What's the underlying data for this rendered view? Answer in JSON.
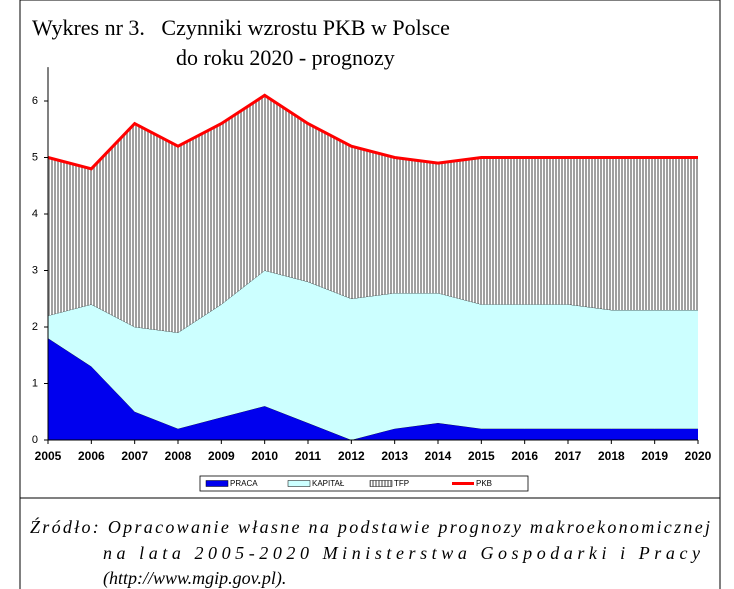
{
  "chart_data": {
    "type": "stacked-area-line",
    "title": "Wykres nr 3.   Czynniki wzrostu PKB w Polsce",
    "subtitle": "do roku 2020 - prognozy",
    "categories": [
      "2005",
      "2006",
      "2007",
      "2008",
      "2009",
      "2010",
      "2011",
      "2012",
      "2013",
      "2014",
      "2015",
      "2016",
      "2017",
      "2018",
      "2019",
      "2020"
    ],
    "series": [
      {
        "name": "PRACA",
        "kind": "area",
        "color": "#0000ee",
        "values": [
          1.8,
          1.3,
          0.5,
          0.2,
          0.4,
          0.6,
          0.3,
          0.0,
          0.2,
          0.3,
          0.2,
          0.2,
          0.2,
          0.2,
          0.2,
          0.2
        ]
      },
      {
        "name": "KAPITAŁ",
        "kind": "area",
        "color": "#ccffff",
        "values": [
          0.4,
          1.1,
          1.5,
          1.7,
          2.0,
          2.4,
          2.5,
          2.5,
          2.4,
          2.3,
          2.2,
          2.2,
          2.2,
          2.1,
          2.1,
          2.1
        ]
      },
      {
        "name": "TFP",
        "kind": "area",
        "color": "#999999",
        "values": [
          2.8,
          2.4,
          3.6,
          3.3,
          3.2,
          3.1,
          2.8,
          2.7,
          2.4,
          2.3,
          2.6,
          2.6,
          2.6,
          2.7,
          2.7,
          2.7
        ]
      },
      {
        "name": "PKB",
        "kind": "line",
        "color": "#ff0000",
        "values": [
          5.0,
          4.8,
          5.6,
          5.2,
          5.6,
          6.1,
          5.6,
          5.2,
          5.0,
          4.9,
          5.0,
          5.0,
          5.0,
          5.0,
          5.0,
          5.0
        ]
      }
    ],
    "ylim": [
      0,
      6.6
    ],
    "yticks": [
      0,
      1,
      2,
      3,
      4,
      5,
      6
    ],
    "legend": "bottom",
    "annotations": [
      "Źródło: Opracowanie własne na podstawie prognozy makroekonomicznej",
      "na lata 2005-2020 Ministerstwa Gospodarki i Pracy",
      "(http://www.mgip.gov.pl)."
    ]
  }
}
